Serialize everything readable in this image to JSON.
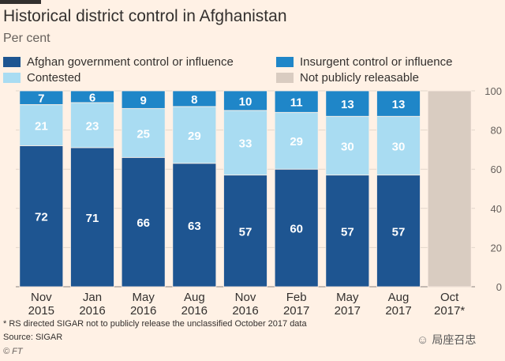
{
  "header": {
    "title": "Historical district control in Afghanistan",
    "subtitle": "Per cent"
  },
  "colors": {
    "government": "#1e5591",
    "insurgent": "#1f86c8",
    "contested": "#a9dcf2",
    "not_public": "#d9ccc1",
    "background": "#fff1e5",
    "grid": "#e2d6cb",
    "axis_text": "#66605c"
  },
  "legend": [
    {
      "label": "Afghan government control or influence",
      "color_key": "government"
    },
    {
      "label": "Insurgent control or influence",
      "color_key": "insurgent"
    },
    {
      "label": "Contested",
      "color_key": "contested"
    },
    {
      "label": "Not publicly releasable",
      "color_key": "not_public"
    }
  ],
  "chart_data": {
    "type": "bar",
    "stacked": true,
    "title": "Historical district control in Afghanistan",
    "ylabel": "Per cent",
    "ylim": [
      0,
      100
    ],
    "yticks": [
      0,
      20,
      40,
      60,
      80,
      100
    ],
    "y_axis_side": "right",
    "grid": true,
    "categories": [
      [
        "Nov",
        "2015"
      ],
      [
        "Jan",
        "2016"
      ],
      [
        "May",
        "2016"
      ],
      [
        "Aug",
        "2016"
      ],
      [
        "Nov",
        "2016"
      ],
      [
        "Feb",
        "2017"
      ],
      [
        "May",
        "2017"
      ],
      [
        "Aug",
        "2017"
      ],
      [
        "Oct",
        "2017*"
      ]
    ],
    "series": [
      {
        "name": "Afghan government control or influence",
        "color_key": "government",
        "values": [
          72,
          71,
          66,
          63,
          57,
          60,
          57,
          57,
          null
        ]
      },
      {
        "name": "Contested",
        "color_key": "contested",
        "values": [
          21,
          23,
          25,
          29,
          33,
          29,
          30,
          30,
          null
        ]
      },
      {
        "name": "Insurgent control or influence",
        "color_key": "insurgent",
        "values": [
          7,
          6,
          9,
          8,
          10,
          11,
          13,
          13,
          null
        ]
      },
      {
        "name": "Not publicly releasable",
        "color_key": "not_public",
        "values": [
          null,
          null,
          null,
          null,
          null,
          null,
          null,
          null,
          100
        ]
      }
    ]
  },
  "footer": {
    "footnote": "* RS directed SIGAR not to publicly release the unclassified October 2017 data",
    "source": "Source: SIGAR",
    "copyright": "© FT"
  },
  "watermark": {
    "text": "局座召忠",
    "icon": "wechat-icon"
  }
}
